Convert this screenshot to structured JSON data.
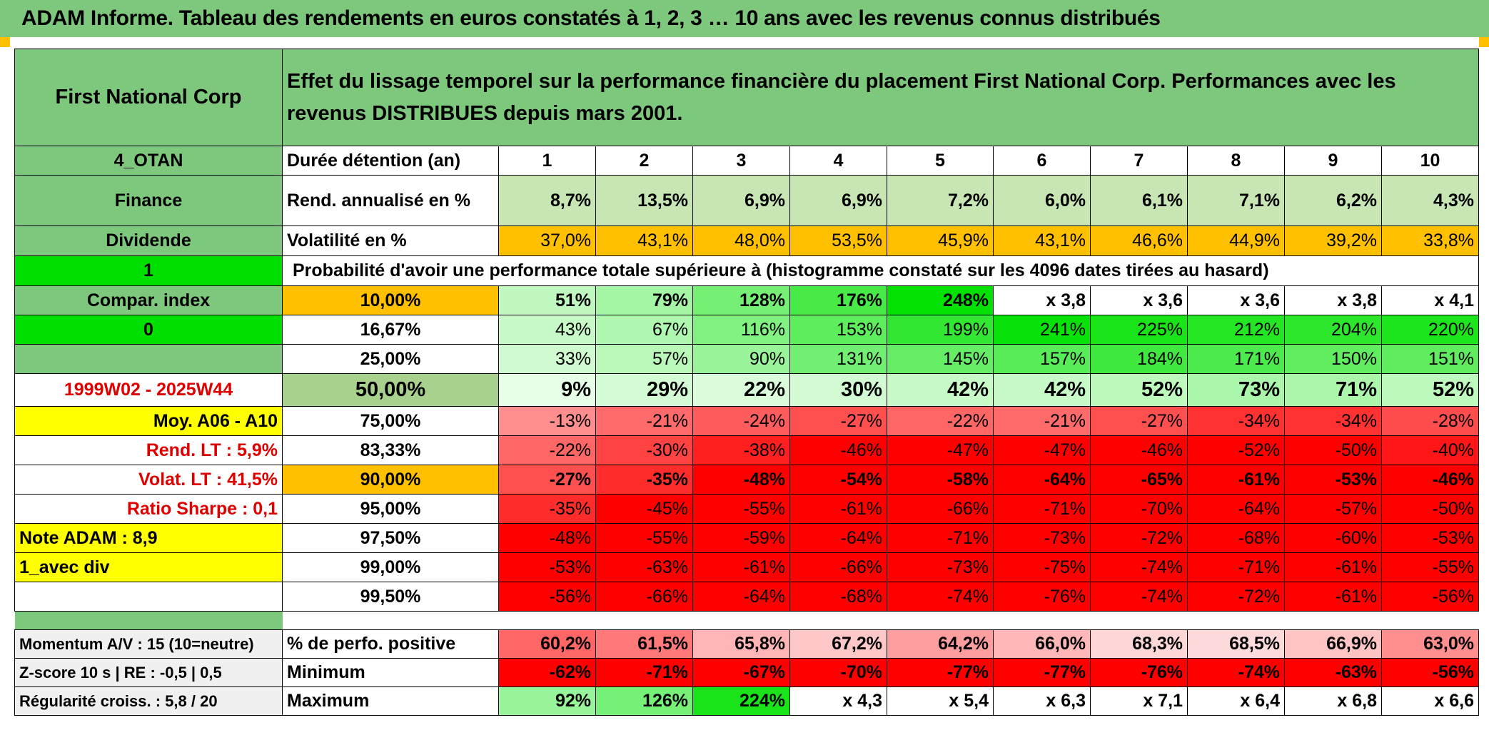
{
  "title": "ADAM Informe. Tableau des rendements en euros constatés à 1, 2, 3 … 10 ans avec les revenus connus distribués",
  "colors": {
    "header_green": "#7ec87e",
    "bright_green": "#00e000",
    "orange": "#ffc000",
    "yellow": "#ffff00",
    "pale_green": "#c8e6b4",
    "red": "#ff0000"
  },
  "header": {
    "fund_name": "First National Corp",
    "description": "Effet du lissage temporel sur la performance financière du placement First National Corp. Performances avec les revenus DISTRIBUES depuis mars 2001."
  },
  "left_labels": {
    "code": "4_OTAN",
    "sector": "Finance",
    "dividend": "Dividende",
    "flag_1": "1",
    "compar_index": "Compar. index",
    "flag_0": "0",
    "period": "1999W02 - 2025W44",
    "moy": "Moy. A06 - A10",
    "rend_lt": "Rend. LT :   5,9%",
    "volat_lt": "Volat. LT :   41,5%",
    "sharpe": "Ratio Sharpe :    0,1",
    "note": "Note ADAM : 8,9",
    "avec_div": "1_avec div",
    "momentum": "Momentum A/V : 15 (10=neutre)",
    "zscore": "Z-score 10 s | RE : -0,5 | 0,5",
    "regularite": "Régularité croiss. : 5,8 / 20"
  },
  "row_labels": {
    "duree": "Durée détention (an)",
    "rend": "Rend. annualisé en %",
    "vol": "Volatilité en %",
    "proba": "Probabilité d'avoir une performance totale supérieure à (histogramme constaté sur les 4096 dates tirées au hasard)",
    "perfo_pos": "% de perfo. positive",
    "minimum": "Minimum",
    "maximum": "Maximum"
  },
  "years": [
    "1",
    "2",
    "3",
    "4",
    "5",
    "6",
    "7",
    "8",
    "9",
    "10"
  ],
  "rend_annualise": [
    "8,7%",
    "13,5%",
    "6,9%",
    "6,9%",
    "7,2%",
    "6,0%",
    "6,1%",
    "7,1%",
    "6,2%",
    "4,3%"
  ],
  "volatilite": [
    "37,0%",
    "43,1%",
    "48,0%",
    "53,5%",
    "45,9%",
    "43,1%",
    "46,6%",
    "44,9%",
    "39,2%",
    "33,8%"
  ],
  "probability_rows": [
    {
      "threshold": "10,00%",
      "values": [
        "51%",
        "79%",
        "128%",
        "176%",
        "248%",
        "x 3,8",
        "x 3,6",
        "x 3,6",
        "x 3,8",
        "x 4,1"
      ]
    },
    {
      "threshold": "16,67%",
      "values": [
        "43%",
        "67%",
        "116%",
        "153%",
        "199%",
        "241%",
        "225%",
        "212%",
        "204%",
        "220%"
      ]
    },
    {
      "threshold": "25,00%",
      "values": [
        "33%",
        "57%",
        "90%",
        "131%",
        "145%",
        "157%",
        "184%",
        "171%",
        "150%",
        "151%"
      ]
    },
    {
      "threshold": "50,00%",
      "values": [
        "9%",
        "29%",
        "22%",
        "30%",
        "42%",
        "42%",
        "52%",
        "73%",
        "71%",
        "52%"
      ]
    },
    {
      "threshold": "75,00%",
      "values": [
        "-13%",
        "-21%",
        "-24%",
        "-27%",
        "-22%",
        "-21%",
        "-27%",
        "-34%",
        "-34%",
        "-28%"
      ]
    },
    {
      "threshold": "83,33%",
      "values": [
        "-22%",
        "-30%",
        "-38%",
        "-46%",
        "-47%",
        "-47%",
        "-46%",
        "-52%",
        "-50%",
        "-40%"
      ]
    },
    {
      "threshold": "90,00%",
      "values": [
        "-27%",
        "-35%",
        "-48%",
        "-54%",
        "-58%",
        "-64%",
        "-65%",
        "-61%",
        "-53%",
        "-46%"
      ]
    },
    {
      "threshold": "95,00%",
      "values": [
        "-35%",
        "-45%",
        "-55%",
        "-61%",
        "-66%",
        "-71%",
        "-70%",
        "-64%",
        "-57%",
        "-50%"
      ]
    },
    {
      "threshold": "97,50%",
      "values": [
        "-48%",
        "-55%",
        "-59%",
        "-64%",
        "-71%",
        "-73%",
        "-72%",
        "-68%",
        "-60%",
        "-53%"
      ]
    },
    {
      "threshold": "99,00%",
      "values": [
        "-53%",
        "-63%",
        "-61%",
        "-66%",
        "-73%",
        "-75%",
        "-74%",
        "-71%",
        "-61%",
        "-55%"
      ]
    },
    {
      "threshold": "99,50%",
      "values": [
        "-56%",
        "-66%",
        "-64%",
        "-68%",
        "-74%",
        "-76%",
        "-74%",
        "-72%",
        "-61%",
        "-56%"
      ]
    }
  ],
  "perfo_positive": [
    "60,2%",
    "61,5%",
    "65,8%",
    "67,2%",
    "64,2%",
    "66,0%",
    "68,3%",
    "68,5%",
    "66,9%",
    "63,0%"
  ],
  "minimum": [
    "-62%",
    "-71%",
    "-67%",
    "-70%",
    "-77%",
    "-77%",
    "-76%",
    "-74%",
    "-63%",
    "-56%"
  ],
  "maximum": [
    "92%",
    "126%",
    "224%",
    "x 4,3",
    "x 5,4",
    "x 6,3",
    "x 7,1",
    "x 6,4",
    "x 6,8",
    "x 6,6"
  ]
}
